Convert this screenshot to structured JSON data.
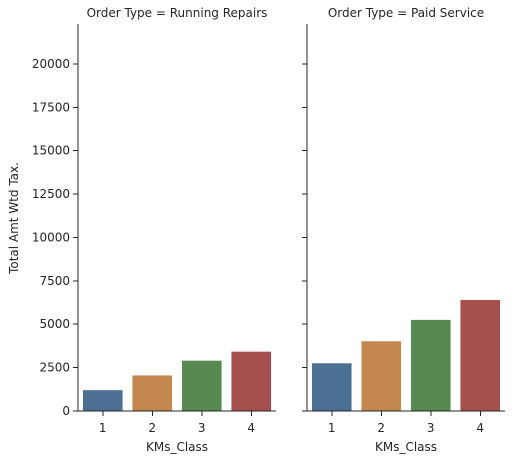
{
  "chart_data": {
    "type": "bar",
    "categories": [
      "1",
      "2",
      "3",
      "4"
    ],
    "ylabel": "Total Amt Wtd Tax.",
    "ylim": [
      0,
      22300
    ],
    "yticks": [
      0,
      2500,
      5000,
      7500,
      10000,
      12500,
      15000,
      17500,
      20000
    ],
    "ytick_labels": [
      "0",
      "2500",
      "5000",
      "7500",
      "10000",
      "12500",
      "15000",
      "17500",
      "20000"
    ],
    "grid": false,
    "colors": [
      "#4c6f94",
      "#c3874f",
      "#578a51",
      "#a54f4f"
    ],
    "panels": [
      {
        "title": "Order Type = Running Repairs",
        "xlabel": "KMs_Class",
        "values": [
          1200,
          2050,
          2900,
          3420
        ]
      },
      {
        "title": "Order Type = Paid Service",
        "xlabel": "KMs_Class",
        "values": [
          2750,
          4020,
          5250,
          6400
        ]
      }
    ]
  }
}
